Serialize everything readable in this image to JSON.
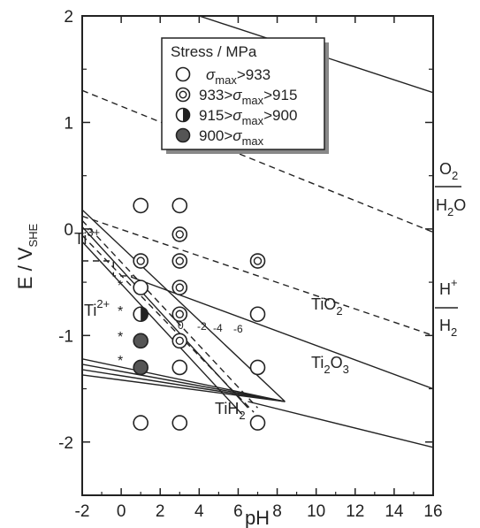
{
  "chart_data": {
    "type": "scatter",
    "title": "",
    "xlabel": "pH",
    "ylabel": "E / V",
    "ylabel_sub": "SHE",
    "xlim": [
      -2,
      16
    ],
    "ylim": [
      -2.5,
      2
    ],
    "xticks": [
      "-2",
      "0",
      "2",
      "4",
      "6",
      "8",
      "10",
      "12",
      "14",
      "16"
    ],
    "yticks": [
      "-2",
      "-1",
      "0",
      "1",
      "2"
    ],
    "grid": false,
    "legend": {
      "title": "Stress / MPa",
      "placement": "top-center",
      "entries": [
        {
          "marker": "open",
          "pre": "",
          "sym": "σ",
          "sub": "max",
          "post": ">933"
        },
        {
          "marker": "double",
          "pre": "933>",
          "sym": "σ",
          "sub": "max",
          "post": ">915"
        },
        {
          "marker": "half",
          "pre": "915>",
          "sym": "σ",
          "sub": "max",
          "post": ">900"
        },
        {
          "marker": "filled",
          "pre": "900>",
          "sym": "σ",
          "sub": "max",
          "post": ""
        }
      ]
    },
    "series": [
      {
        "name": "σmax>933",
        "marker": "open",
        "points": [
          [
            1,
            0.22
          ],
          [
            3,
            0.22
          ],
          [
            1,
            -0.55
          ],
          [
            3,
            -1.3
          ],
          [
            7,
            -0.8
          ],
          [
            7,
            -1.3
          ],
          [
            1,
            -1.82
          ],
          [
            3,
            -1.82
          ],
          [
            7,
            -1.82
          ]
        ]
      },
      {
        "name": "933>σmax>915",
        "marker": "double",
        "points": [
          [
            3,
            -0.05
          ],
          [
            3,
            -0.3
          ],
          [
            1,
            -0.3
          ],
          [
            3,
            -0.55
          ],
          [
            7,
            -0.3
          ],
          [
            3,
            -0.8
          ],
          [
            3,
            -1.05
          ]
        ]
      },
      {
        "name": "915>σmax>900",
        "marker": "half",
        "points": [
          [
            1,
            -0.8
          ]
        ]
      },
      {
        "name": "900>σmax",
        "marker": "filled",
        "points": [
          [
            1,
            -1.05
          ],
          [
            1,
            -1.3
          ]
        ]
      }
    ],
    "lines": [
      {
        "style": "dashed",
        "points": [
          [
            -2,
            1.3
          ],
          [
            16,
            -0.03
          ]
        ]
      },
      {
        "style": "dashed",
        "points": [
          [
            -2,
            0.12
          ],
          [
            16,
            -1.0
          ]
        ]
      },
      {
        "style": "solid",
        "points": [
          [
            4,
            2
          ],
          [
            16,
            1.28
          ]
        ]
      },
      {
        "style": "solid",
        "points": [
          [
            0.5,
            -0.45
          ],
          [
            16,
            -1.5
          ]
        ]
      },
      {
        "style": "solid",
        "points": [
          [
            6.5,
            -1.62
          ],
          [
            16,
            -2.05
          ]
        ]
      },
      {
        "style": "solid",
        "points": [
          [
            -2,
            0.18
          ],
          [
            8.4,
            -1.62
          ]
        ]
      },
      {
        "style": "solid",
        "points": [
          [
            -2,
            -1.22
          ],
          [
            8.4,
            -1.62
          ]
        ]
      },
      {
        "style": "solid",
        "points": [
          [
            -2,
            -1.27
          ],
          [
            8.4,
            -1.62
          ]
        ]
      },
      {
        "style": "solid",
        "points": [
          [
            -2,
            -1.32
          ],
          [
            8.4,
            -1.62
          ]
        ]
      },
      {
        "style": "solid",
        "points": [
          [
            -2,
            -1.37
          ],
          [
            8.4,
            -1.62
          ]
        ]
      },
      {
        "style": "solid",
        "points": [
          [
            -2,
            0.02
          ],
          [
            6.5,
            -1.68
          ]
        ]
      },
      {
        "style": "solid",
        "points": [
          [
            -2,
            -0.12
          ],
          [
            6.2,
            -1.74
          ]
        ]
      },
      {
        "style": "dashed",
        "points": [
          [
            -2,
            0.08
          ],
          [
            7,
            -1.68
          ]
        ]
      },
      {
        "style": "dashed",
        "points": [
          [
            -2,
            -0.06
          ],
          [
            6.8,
            -1.72
          ]
        ]
      },
      {
        "style": "dashed",
        "points": [
          [
            -2,
            -0.3
          ],
          [
            -0.4,
            -0.3
          ],
          [
            -0.4,
            -0.44
          ],
          [
            0.6,
            -0.44
          ]
        ]
      }
    ],
    "region_labels": [
      {
        "text": "Ti",
        "sup": "3+",
        "at": [
          -1.6,
          -0.22
        ]
      },
      {
        "text": "Ti",
        "sup": "2+",
        "at": [
          -1.4,
          -1.03
        ]
      },
      {
        "text": "TiO",
        "sub": "2",
        "at": [
          10,
          -0.9
        ]
      },
      {
        "text": "Ti",
        "sub": "2",
        "text2": "O",
        "sub2": "3",
        "at": [
          11,
          -1.46
        ]
      },
      {
        "text": "TiH",
        "sub": "2",
        "at": [
          6,
          -2.02
        ]
      }
    ],
    "line_labels": [
      "0",
      "-2",
      "-4",
      "-6"
    ],
    "asterisks": [
      "*",
      "*",
      "*",
      "*"
    ],
    "right_labels": {
      "o2": {
        "text": "O",
        "sub": "2"
      },
      "h2o": {
        "text": "H",
        "sub": "2",
        "text2": "O"
      },
      "hplus": {
        "text": "H",
        "sup": "+"
      },
      "h2": {
        "text": "H",
        "sub": "2"
      }
    }
  }
}
